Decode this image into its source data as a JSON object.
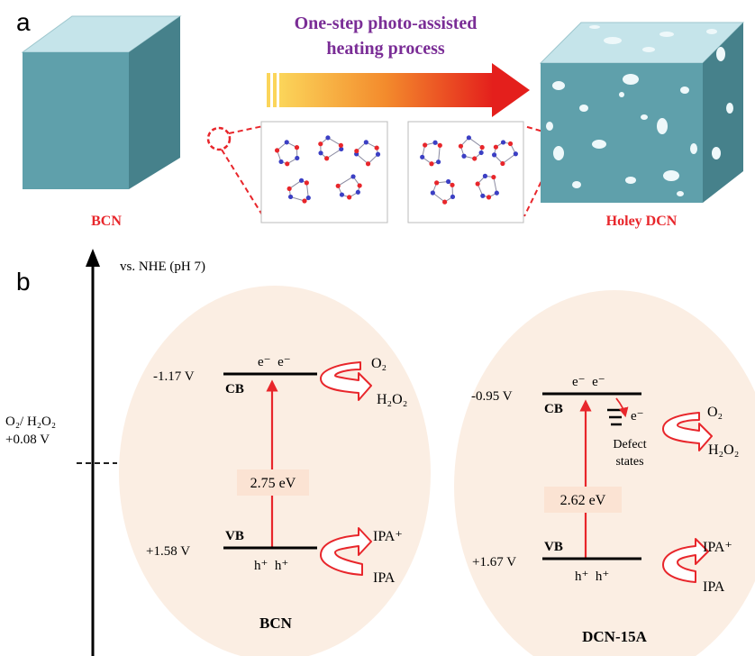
{
  "panel_a": {
    "label": "a",
    "process_line1": "One-step photo-assisted",
    "process_line2": "heating process",
    "left_label": "BCN",
    "right_label": "Holey DCN"
  },
  "panel_b": {
    "label": "b",
    "axis_label": "vs. NHE (pH 7)",
    "ref_line1": "O₂/ H₂O₂",
    "ref_line2": "+0.08 V",
    "bcn": {
      "cb_potential": "-1.17 V",
      "vb_potential": "+1.58 V",
      "cb_label": "CB",
      "vb_label": "VB",
      "electrons": "e⁻  e⁻",
      "holes": "h⁺  h⁺",
      "gap": "2.75 eV",
      "ox_in": "O₂",
      "ox_out": "H₂O₂",
      "red_in": "IPA⁺",
      "red_out": "IPA",
      "name": "BCN"
    },
    "dcn": {
      "cb_potential": "-0.95 V",
      "vb_potential": "+1.67 V",
      "cb_label": "CB",
      "vb_label": "VB",
      "electrons": "e⁻  e⁻",
      "holes": "h⁺  h⁺",
      "defect_electron": "e⁻",
      "defect_line1": "Defect",
      "defect_line2": "states",
      "gap": "2.62 eV",
      "ox_in": "O₂",
      "ox_out": "H₂O₂",
      "red_in": "IPA⁺",
      "red_out": "IPA",
      "name": "DCN-15A"
    }
  },
  "colors": {
    "cube_top": "#c5e4ea",
    "cube_front": "#5fa0ab",
    "cube_side": "#46818b",
    "accent_red": "#e8262b",
    "process_purple": "#7a2d96",
    "label_red": "#e8262b",
    "ellipse_fill": "#fbeee3",
    "gap_box": "#fbe3d3"
  }
}
